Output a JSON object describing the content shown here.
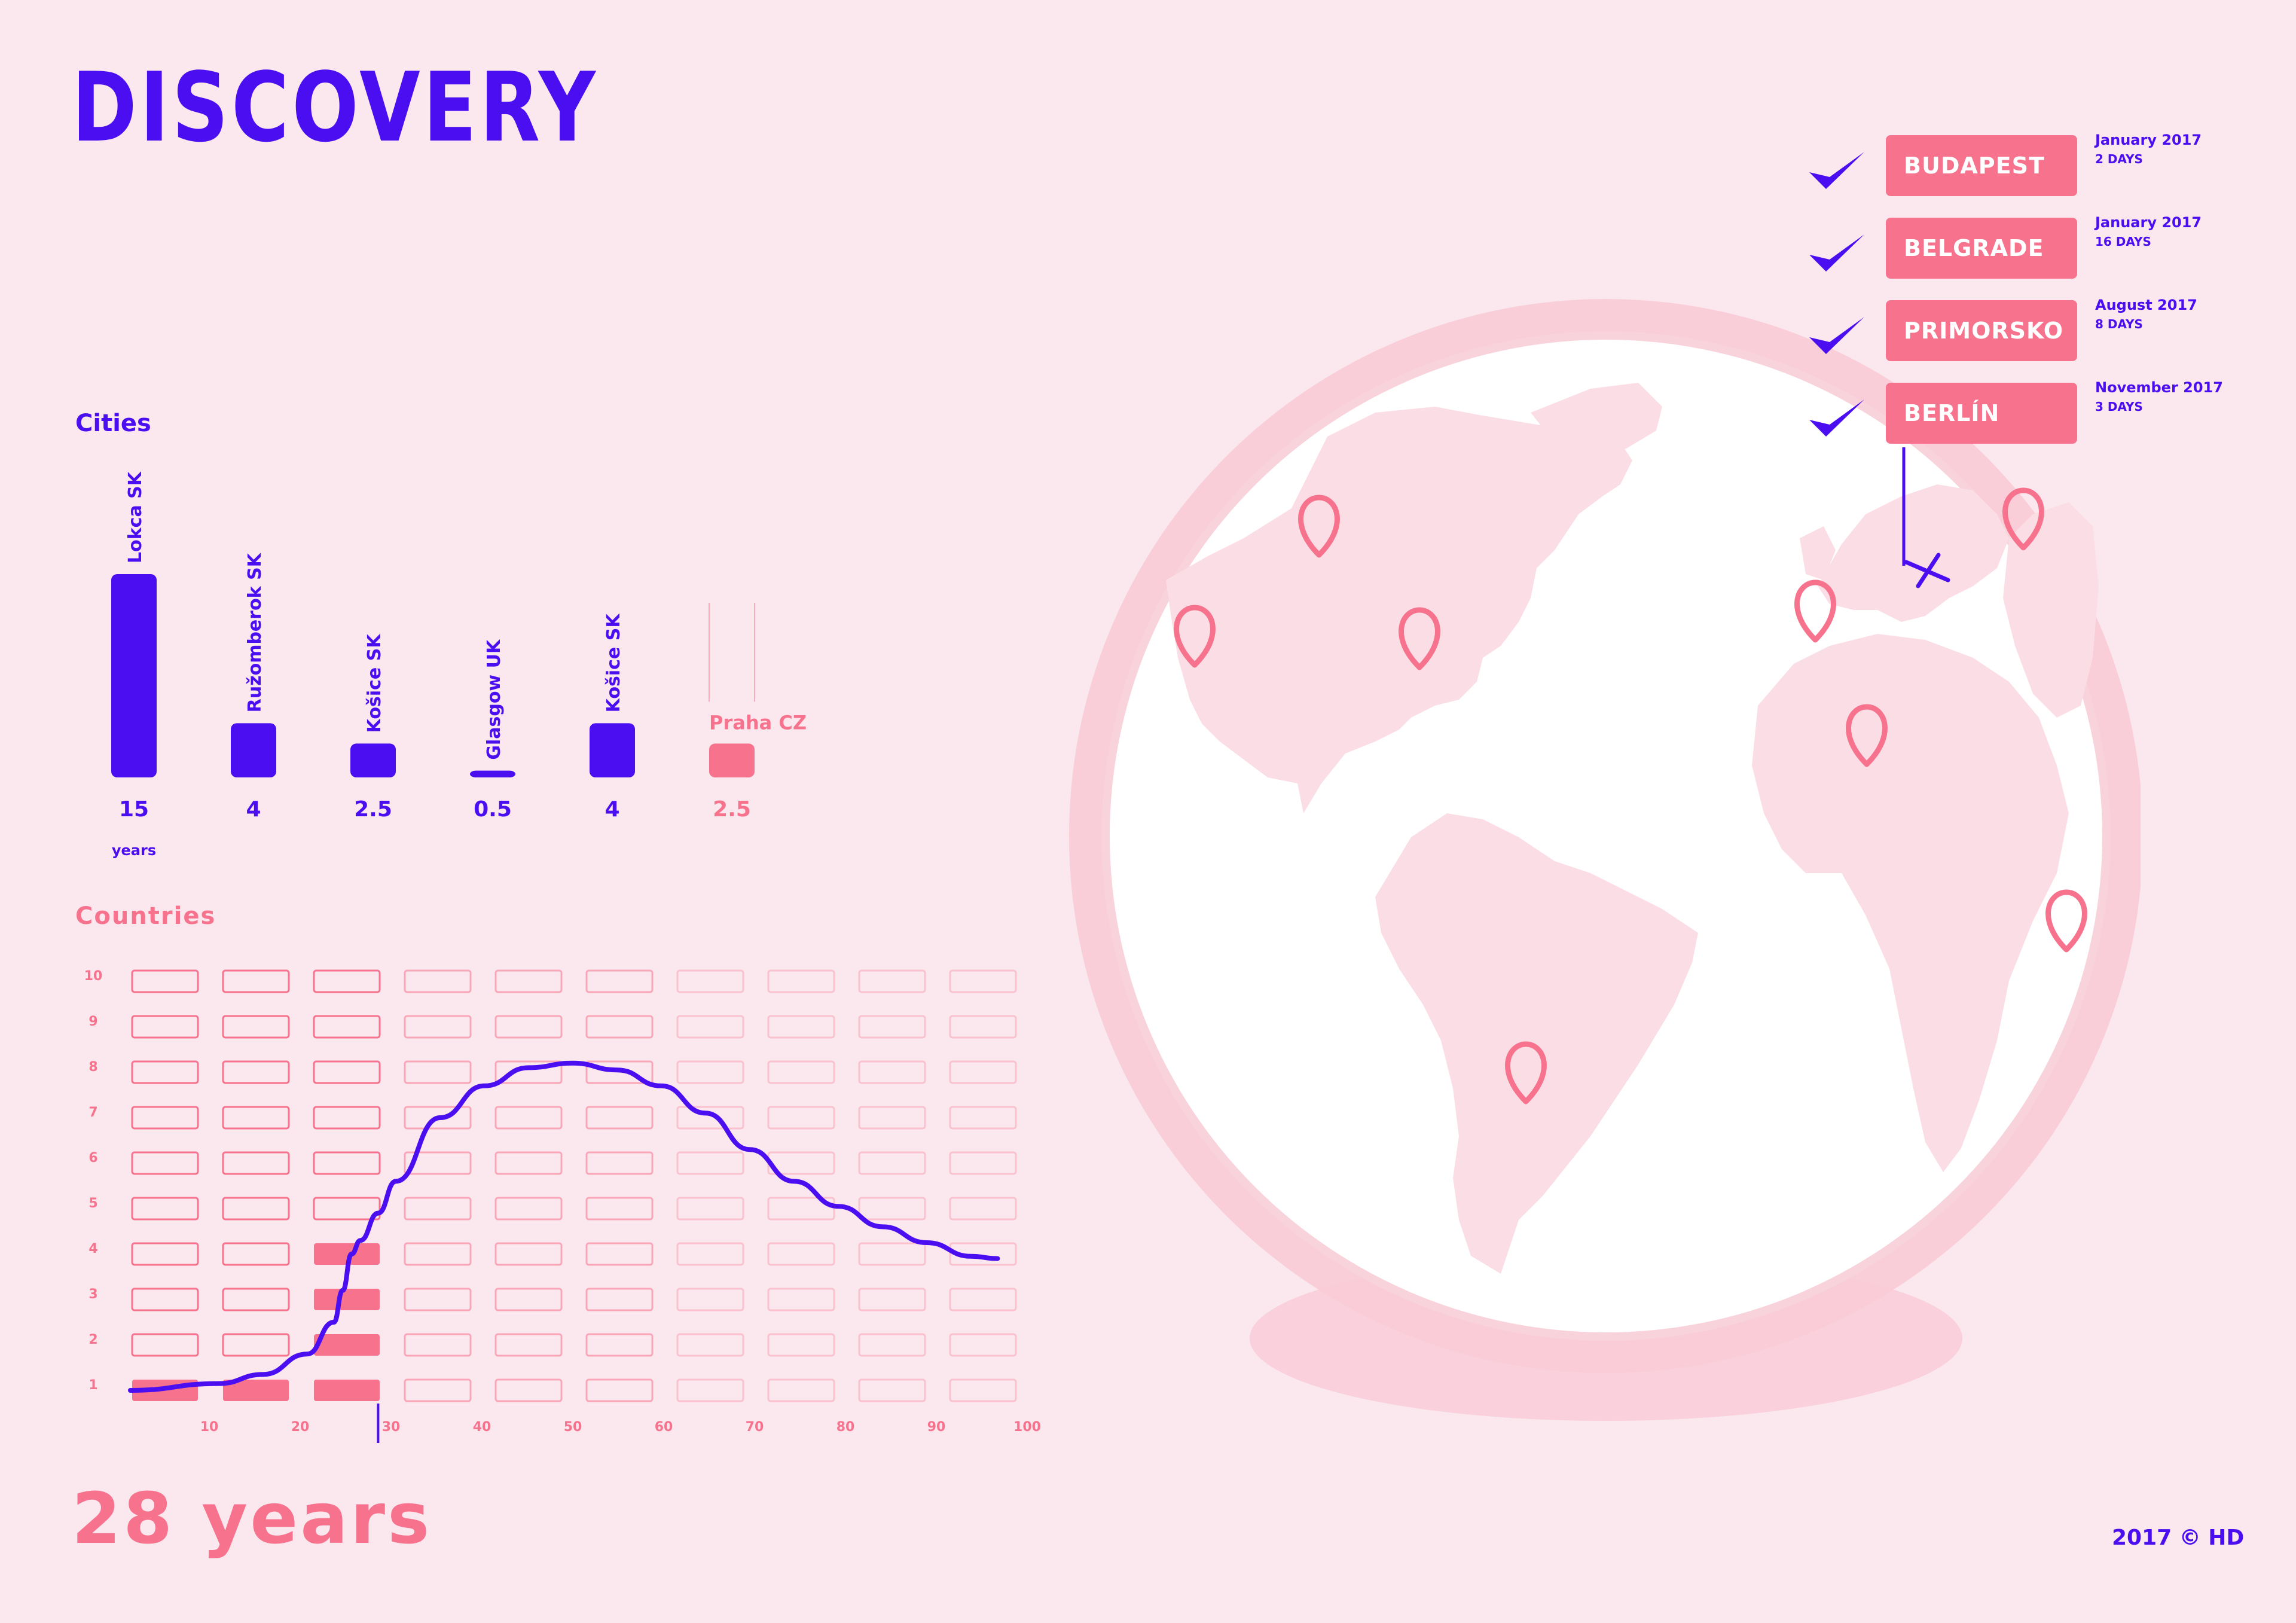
{
  "title": "DISCOVERY",
  "colors": {
    "primary": "#4a0ef0",
    "accent": "#f7738d",
    "background": "#fbe7ee",
    "globe_ring": "#f8c8d4",
    "land": "#fbdde5"
  },
  "cities_chart": {
    "label": "Cities",
    "unit_label": "years",
    "bars": [
      {
        "city": "Lokca",
        "country": "SK",
        "value_label": "15",
        "highlight": false
      },
      {
        "city": "Ružomberok",
        "country": "SK",
        "value_label": "4",
        "highlight": false
      },
      {
        "city": "Košice",
        "country": "SK",
        "value_label": "2.5",
        "highlight": false
      },
      {
        "city": "Glasgow",
        "country": "UK",
        "value_label": "0.5",
        "highlight": false
      },
      {
        "city": "Košice",
        "country": "SK",
        "value_label": "4",
        "highlight": false
      },
      {
        "city": "Praha",
        "country": "CZ",
        "value_label": "2.5",
        "highlight": true
      }
    ]
  },
  "chart_data": [
    {
      "type": "bar",
      "title": "Cities",
      "categories": [
        "Lokca SK",
        "Ružomberok SK",
        "Košice SK",
        "Glasgow UK",
        "Košice SK",
        "Praha CZ"
      ],
      "values": [
        15,
        4,
        2.5,
        0.5,
        4,
        2.5
      ],
      "ylabel": "years",
      "highlight_index": 5
    },
    {
      "type": "line",
      "title": "Countries",
      "x_ticks": [
        10,
        20,
        30,
        40,
        50,
        60,
        70,
        80,
        90,
        100
      ],
      "y_ticks": [
        1,
        2,
        3,
        4,
        5,
        6,
        7,
        8,
        9,
        10
      ],
      "xlim": [
        0,
        100
      ],
      "ylim": [
        0.5,
        10.5
      ],
      "filled_cells": [
        [
          1,
          1
        ],
        [
          2,
          1
        ],
        [
          3,
          1
        ],
        [
          3,
          2
        ],
        [
          3,
          3
        ],
        [
          3,
          4
        ]
      ],
      "marker_x": 28,
      "series": [
        {
          "x": [
            0,
            10,
            15,
            20,
            23,
            24,
            25,
            26,
            28,
            30,
            35,
            40,
            45,
            50,
            55,
            60,
            65,
            70,
            75,
            80,
            85,
            90,
            95,
            98
          ],
          "y": [
            1.0,
            1.15,
            1.35,
            1.8,
            2.5,
            3.2,
            4.0,
            4.3,
            4.9,
            5.6,
            7.0,
            7.7,
            8.1,
            8.2,
            8.05,
            7.7,
            7.1,
            6.3,
            5.6,
            5.05,
            4.6,
            4.25,
            3.95,
            3.9
          ]
        }
      ]
    }
  ],
  "trips": [
    {
      "city": "BUDAPEST",
      "date": "January 2017",
      "duration": "2 DAYS"
    },
    {
      "city": "BELGRADE",
      "date": "January 2017",
      "duration": "16 DAYS"
    },
    {
      "city": "PRIMORSKO",
      "date": "August 2017",
      "duration": "8 DAYS"
    },
    {
      "city": "BERLÍN",
      "date": "November 2017",
      "duration": "3 DAYS"
    }
  ],
  "map_pins": [
    "pin-icon",
    "pin-icon",
    "pin-icon",
    "pin-icon",
    "pin-icon",
    "pin-icon",
    "pin-icon",
    "pin-icon"
  ],
  "countries_label": "Countries",
  "footer": {
    "years": "28 years",
    "copyright": "2017 © HD"
  }
}
